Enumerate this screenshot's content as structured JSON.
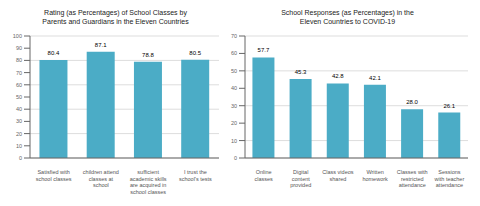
{
  "chart_data": [
    {
      "type": "bar",
      "title": "Rating (as Percentages) of School Classes by\nParents and Guardians in the Eleven Countries",
      "categories": [
        "Satisfied with\nschool classes",
        "children attend\nclasses at\nschool",
        "sufficient\nacademic skills\nare acquired in\nschool classes",
        "I trust the\nschool's tests"
      ],
      "values": [
        80.4,
        87.1,
        78.8,
        80.5
      ],
      "color": "#4BACC6",
      "ylim": [
        0,
        100
      ],
      "yticks": [
        0,
        10,
        20,
        30,
        40,
        50,
        60,
        70,
        80,
        90,
        100
      ],
      "grid": true,
      "data_labels": true
    },
    {
      "type": "bar",
      "title": "School Responses (as Percentages) in the\nEleven Countries to COVID-19",
      "categories": [
        "Online\nclasses",
        "Digital\ncontent\nprovided",
        "Class videos\nshared",
        "Written\nhomework",
        "Classes with\nrestricted\nattendance",
        "Sessions\nwith teacher\nattendance"
      ],
      "values": [
        57.7,
        45.3,
        42.8,
        42.1,
        28.0,
        26.1
      ],
      "value_labels": [
        "57.7",
        "45.3",
        "42.8",
        "42.1",
        "28.0",
        "26.1"
      ],
      "color": "#4BACC6",
      "ylim": [
        0,
        70
      ],
      "yticks": [
        0,
        10,
        20,
        30,
        40,
        50,
        60,
        70
      ],
      "grid": true,
      "data_labels": true
    }
  ]
}
